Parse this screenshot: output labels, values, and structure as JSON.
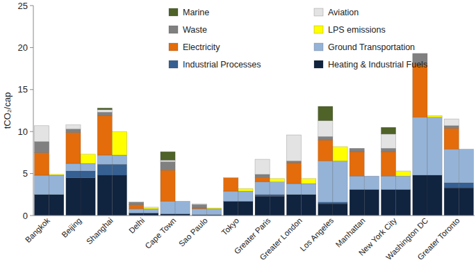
{
  "chart_data": {
    "type": "bar",
    "stacked": true,
    "grid": false,
    "legend": "top",
    "y_label": "tCO₂/cap",
    "ylim": [
      0,
      25
    ],
    "yticks": [
      0,
      5,
      10,
      15,
      20,
      25
    ],
    "categories": [
      "Bangkok",
      null,
      "Beijing",
      null,
      "Shanghai",
      null,
      "Delhi",
      null,
      "Cape Town",
      null,
      "Sao Paulo",
      null,
      "Tokyo",
      null,
      "Greater Paris",
      null,
      "Greater London",
      null,
      "Los Angeles",
      null,
      "Manhattan",
      null,
      "New York City",
      null,
      "Washington DC",
      null,
      "Greater Toronto",
      null
    ],
    "series": [
      {
        "name": "Marine",
        "color": "#4f6228",
        "values": [
          0,
          0,
          0,
          0,
          0.2,
          0,
          0,
          0,
          1.0,
          0,
          0,
          0,
          0,
          0,
          0,
          0,
          0,
          0,
          1.7,
          0,
          0,
          0,
          0.8,
          0,
          0,
          0,
          0,
          0
        ]
      },
      {
        "name": "Aviation",
        "color": "#e3e3e3",
        "values": [
          1.9,
          0,
          0.5,
          0,
          0.3,
          0,
          0,
          0,
          0.2,
          0,
          0.1,
          0,
          0,
          0,
          1.8,
          0,
          3.1,
          0,
          1.9,
          0,
          0,
          0,
          1.7,
          0,
          0,
          0,
          0.8,
          0
        ]
      },
      {
        "name": "Waste",
        "color": "#808080",
        "values": [
          1.3,
          0,
          0.4,
          0,
          0.4,
          0,
          0.3,
          0,
          1.0,
          0,
          0.4,
          0,
          0,
          0,
          0.4,
          0,
          0.2,
          0,
          0.4,
          0,
          0.4,
          0,
          0.4,
          0,
          1.3,
          0,
          0.3,
          0
        ]
      },
      {
        "name": "LPS emissions",
        "color": "#ffff00",
        "values": [
          0,
          0.1,
          0,
          1.1,
          0,
          2.8,
          0,
          0.2,
          0,
          0,
          0,
          0.1,
          0,
          0.3,
          0,
          0.4,
          0,
          0.6,
          0,
          1.7,
          0,
          0,
          0,
          0.6,
          0,
          0.2,
          0,
          0
        ]
      },
      {
        "name": "Electricity",
        "color": "#e46c0a",
        "values": [
          2.7,
          0,
          3.7,
          0,
          4.7,
          0,
          0.5,
          0,
          3.7,
          0,
          0.1,
          0,
          1.6,
          0,
          0.5,
          0,
          2.5,
          0,
          2.5,
          0,
          2.9,
          0,
          2.9,
          0,
          6.3,
          0,
          2.5,
          0
        ]
      },
      {
        "name": "Ground Transportation",
        "color": "#95b3d7",
        "values": [
          2.3,
          2.3,
          0.9,
          0.9,
          1.1,
          1.1,
          0.5,
          0.5,
          1.5,
          1.5,
          0.7,
          0.7,
          1.2,
          1.2,
          1.5,
          1.5,
          1.3,
          1.3,
          4.9,
          4.9,
          1.6,
          1.6,
          1.6,
          1.6,
          6.9,
          6.9,
          4.0,
          4.0
        ]
      },
      {
        "name": "Industrial Processes",
        "color": "#366092",
        "values": [
          0,
          0,
          0.8,
          0.8,
          1.3,
          1.3,
          0,
          0,
          0,
          0,
          0,
          0,
          0,
          0,
          0.2,
          0.2,
          0,
          0,
          0.2,
          0.2,
          0,
          0,
          0,
          0,
          0,
          0,
          0.6,
          0.6
        ]
      },
      {
        "name": "Heating & Industrial Fuels",
        "color": "#10233f",
        "values": [
          2.5,
          2.5,
          4.5,
          4.5,
          4.8,
          4.8,
          0.3,
          0.3,
          0.2,
          0.2,
          0.1,
          0.1,
          1.7,
          1.7,
          2.3,
          2.3,
          2.5,
          2.5,
          1.4,
          1.4,
          3.1,
          3.1,
          3.1,
          3.1,
          4.8,
          4.8,
          3.3,
          3.3
        ]
      }
    ]
  }
}
